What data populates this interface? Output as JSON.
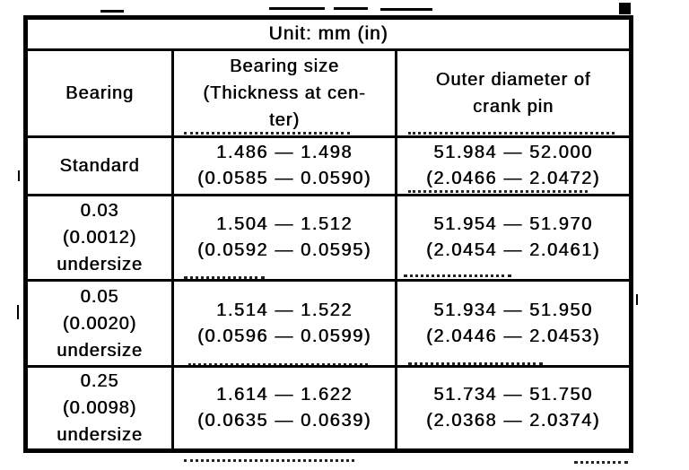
{
  "unit_label": "Unit: mm (in)",
  "table": {
    "headers": [
      {
        "label": "Bearing",
        "lines": [
          "Bearing"
        ]
      },
      {
        "label": "Bearing size (Thickness at center)",
        "lines": [
          "Bearing size",
          "(Thickness at cen-",
          "ter)"
        ]
      },
      {
        "label": "Outer diameter of crank pin",
        "lines": [
          "Outer diameter of",
          "crank pin"
        ]
      }
    ],
    "rows": [
      {
        "bearing_lines": [
          "Standard"
        ],
        "bearing_size_mm": "1.486 — 1.498",
        "bearing_size_in": "(0.0585 — 0.0590)",
        "crank_pin_mm": "51.984 — 52.000",
        "crank_pin_in": "(2.0466 — 2.0472)"
      },
      {
        "bearing_lines": [
          "0.03",
          "(0.0012)",
          "undersize"
        ],
        "bearing_size_mm": "1.504 — 1.512",
        "bearing_size_in": "(0.0592 — 0.0595)",
        "crank_pin_mm": "51.954 — 51.970",
        "crank_pin_in": "(2.0454 — 2.0461)"
      },
      {
        "bearing_lines": [
          "0.05",
          "(0.0020)",
          "undersize"
        ],
        "bearing_size_mm": "1.514 — 1.522",
        "bearing_size_in": "(0.0596 — 0.0599)",
        "crank_pin_mm": "51.934 — 51.950",
        "crank_pin_in": "(2.0446 — 2.0453)"
      },
      {
        "bearing_lines": [
          "0.25",
          "(0.0098)",
          "undersize"
        ],
        "bearing_size_mm": "1.614 — 1.622",
        "bearing_size_in": "(0.0635 — 0.0639)",
        "crank_pin_mm": "51.734 — 51.750",
        "crank_pin_in": "(2.0368 — 2.0374)"
      }
    ]
  }
}
